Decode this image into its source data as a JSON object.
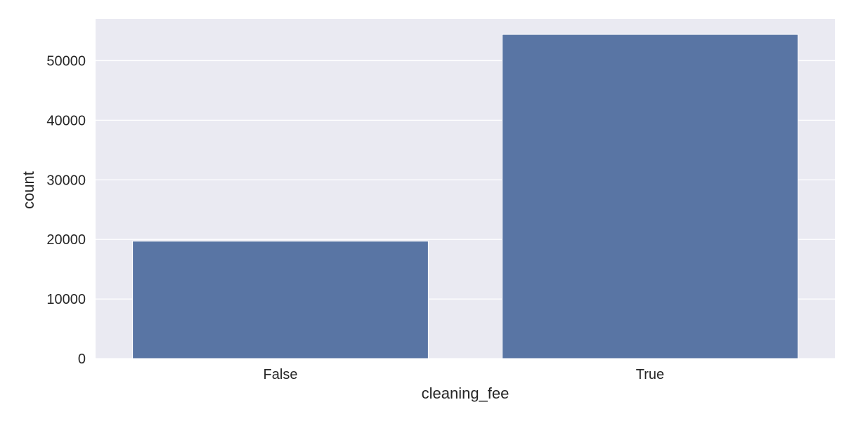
{
  "chart_data": {
    "type": "bar",
    "title": "",
    "xlabel": "cleaning_fee",
    "ylabel": "count",
    "categories": [
      "False",
      "True"
    ],
    "values": [
      19700,
      54400
    ],
    "ylim": [
      0,
      57000
    ],
    "yticks": [
      0,
      10000,
      20000,
      30000,
      40000,
      50000
    ],
    "ytick_labels": [
      "0",
      "10000",
      "20000",
      "30000",
      "40000",
      "50000"
    ],
    "grid": true,
    "colors": {
      "bar": "#5975a4",
      "plot_background": "#eaeaf2",
      "grid": "#ffffff",
      "text": "#262626"
    }
  }
}
